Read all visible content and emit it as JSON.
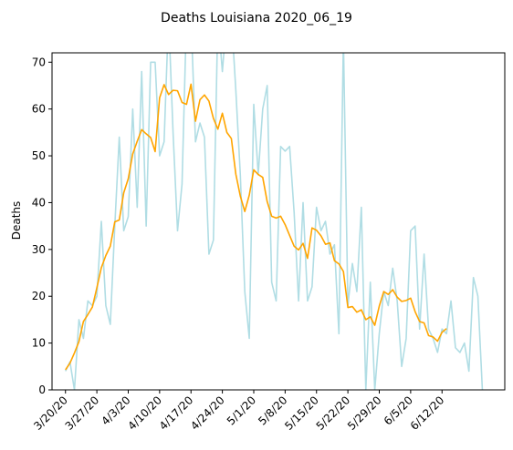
{
  "chart_data": {
    "type": "line",
    "title": "Deaths Louisiana 2020_06_19",
    "xlabel": "",
    "ylabel": "Deaths",
    "ylim": [
      0,
      72
    ],
    "xlim": [
      "2020-03-17",
      "2020-06-26"
    ],
    "grid": false,
    "legend": "none",
    "x_start": "2020-03-20",
    "y_ticks": [
      0,
      10,
      20,
      30,
      40,
      50,
      60,
      70
    ],
    "x_ticks": [
      {
        "date": "2020-03-20",
        "label": "3/20/20"
      },
      {
        "date": "2020-03-27",
        "label": "3/27/20"
      },
      {
        "date": "2020-04-03",
        "label": "4/3/20"
      },
      {
        "date": "2020-04-10",
        "label": "4/10/20"
      },
      {
        "date": "2020-04-17",
        "label": "4/17/20"
      },
      {
        "date": "2020-04-24",
        "label": "4/24/20"
      },
      {
        "date": "2020-05-01",
        "label": "5/1/20"
      },
      {
        "date": "2020-05-08",
        "label": "5/8/20"
      },
      {
        "date": "2020-05-15",
        "label": "5/15/20"
      },
      {
        "date": "2020-05-22",
        "label": "5/22/20"
      },
      {
        "date": "2020-05-29",
        "label": "5/29/20"
      },
      {
        "date": "2020-06-05",
        "label": "6/5/20"
      },
      {
        "date": "2020-06-12",
        "label": "6/12/20"
      }
    ],
    "series": [
      {
        "color": "#b0dde4",
        "values": [
          4,
          6,
          0,
          15,
          11,
          19,
          18,
          20,
          36,
          18,
          14,
          35,
          54,
          34,
          37,
          60,
          39,
          68,
          35,
          70,
          70,
          50,
          53,
          80,
          55,
          34,
          44,
          80,
          80,
          53,
          57,
          54,
          29,
          32,
          80,
          68,
          80,
          80,
          64,
          46,
          21,
          11,
          61,
          46,
          60,
          65,
          23,
          19,
          52,
          51,
          52,
          38,
          19,
          40,
          19,
          22,
          39,
          34,
          36,
          29,
          31,
          12,
          75,
          18,
          27,
          21,
          39,
          0,
          23,
          0,
          12,
          21,
          18,
          26,
          19,
          5,
          11,
          34,
          35,
          13,
          29,
          13,
          11,
          8,
          13,
          12,
          19,
          9,
          8,
          10,
          4,
          24,
          20,
          0
        ]
      },
      {
        "color": "#ffa500",
        "values": [
          4.3,
          5.7,
          7.9,
          10.3,
          14.6,
          16.1,
          17.7,
          21.8,
          26.1,
          28.7,
          30.7,
          35.9,
          36.3,
          42.1,
          45.1,
          50.4,
          53.1,
          55.6,
          54.7,
          53.9,
          50.9,
          62.4,
          65.2,
          63.1,
          64.0,
          63.9,
          61.4,
          61.0,
          65.3,
          57.4,
          62.0,
          63.0,
          61.7,
          58.0,
          55.7,
          59.1,
          55.0,
          53.7,
          46.1,
          41.4,
          38.1,
          41.6,
          47.0,
          46.0,
          45.4,
          40.2,
          37.1,
          36.7,
          37.1,
          35.3,
          33.0,
          30.7,
          29.9,
          31.3,
          28.1,
          34.6,
          34.1,
          32.9,
          31.1,
          31.4,
          27.6,
          26.9,
          25.3,
          17.6,
          17.8,
          16.6,
          17.1,
          15.0,
          15.6,
          13.8,
          17.9,
          21.0,
          20.4,
          21.4,
          19.8,
          18.9,
          19.1,
          19.6,
          16.7,
          14.6,
          14.3,
          11.6,
          11.3,
          10.4,
          12.3,
          13.1
        ]
      }
    ]
  }
}
